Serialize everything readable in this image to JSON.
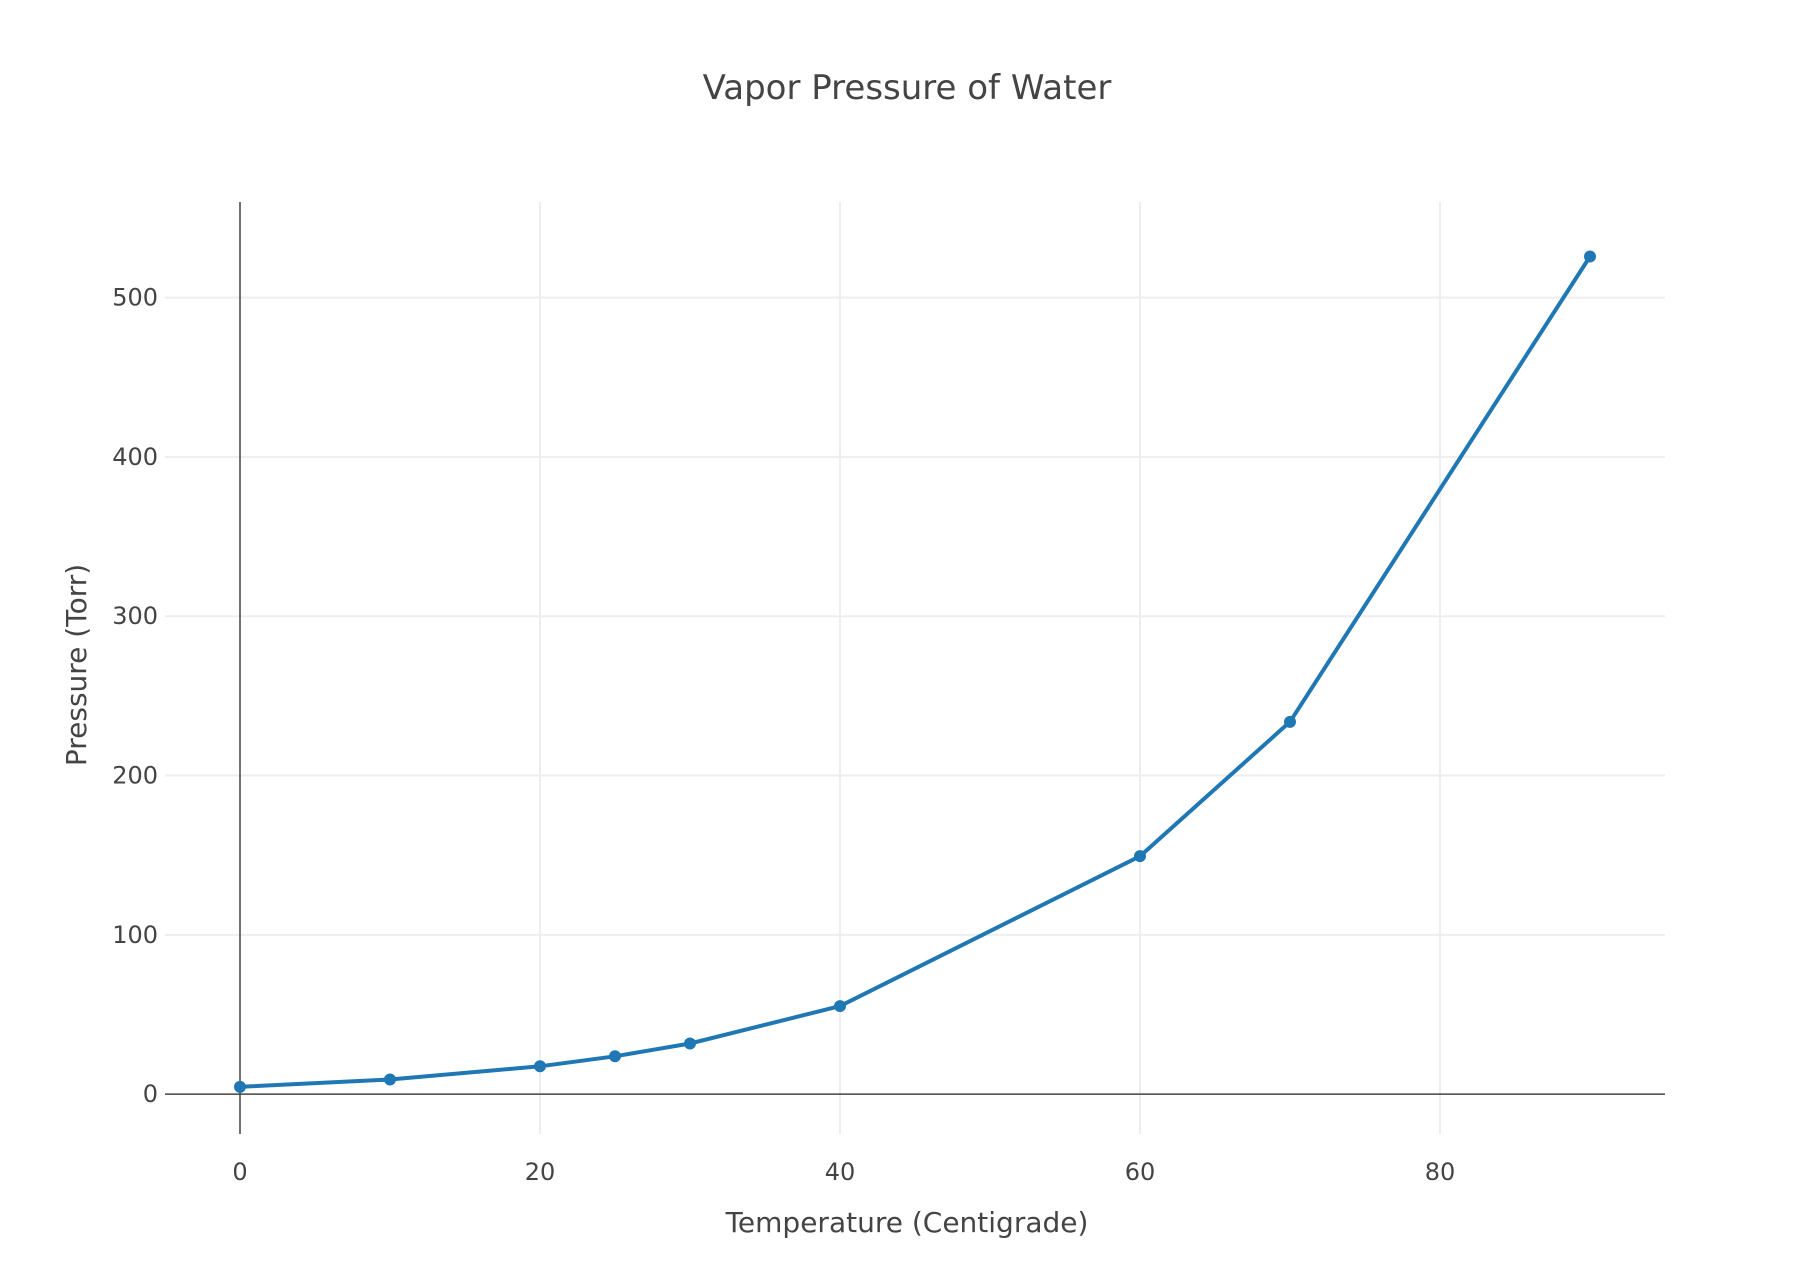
{
  "chart_data": {
    "type": "line",
    "title": "Vapor Pressure of Water",
    "xlabel": "Temperature (Centigrade)",
    "ylabel": "Pressure (Torr)",
    "xlim": [
      -5,
      95
    ],
    "ylim": [
      -25,
      560
    ],
    "x_ticks": [
      0,
      20,
      40,
      60,
      80
    ],
    "y_ticks": [
      0,
      100,
      200,
      300,
      400,
      500
    ],
    "grid": true,
    "legend": "none",
    "line_color": "#1f77b4",
    "series": [
      {
        "x": [
          0,
          10,
          20,
          25,
          30,
          40,
          60,
          70,
          90
        ],
        "y": [
          4.6,
          9.2,
          17.5,
          23.8,
          31.8,
          55.3,
          149.4,
          233.7,
          525.8
        ]
      }
    ]
  }
}
